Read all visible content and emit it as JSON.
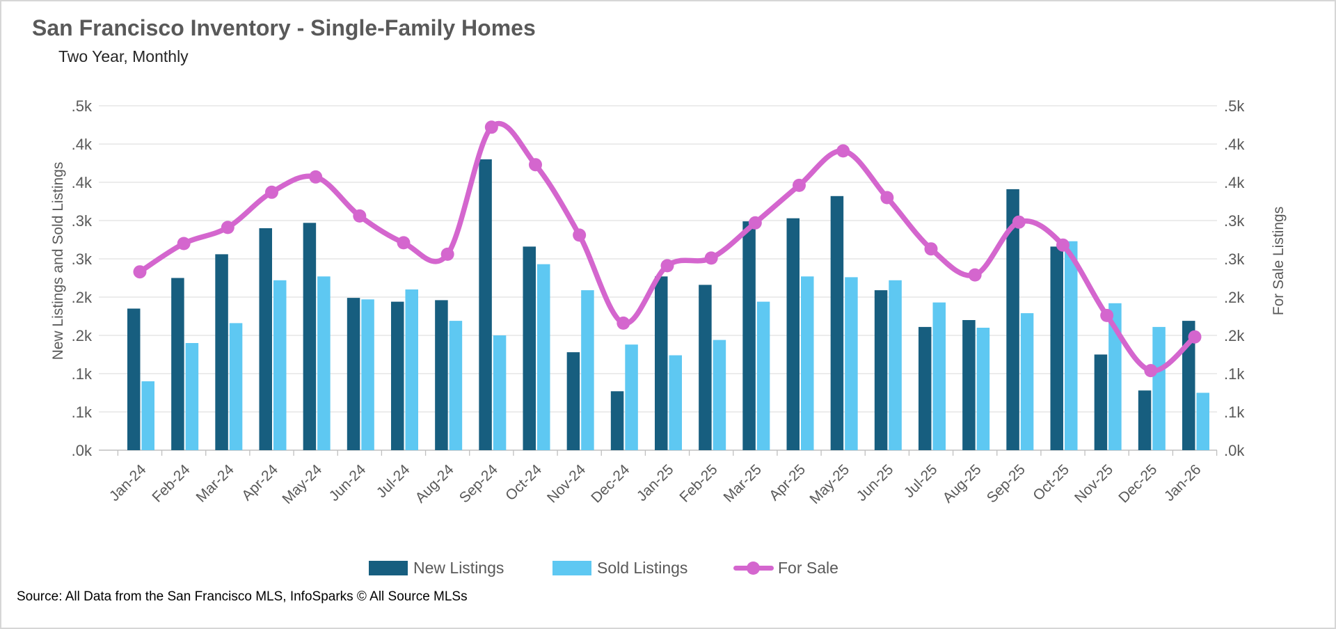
{
  "source_note": "Source: All Data from the San Francisco MLS, InfoSparks © All Source MLSs",
  "colors": {
    "new_listings": "#175E7F",
    "sold_listings": "#5EC8F2",
    "for_sale": "#D466CE",
    "gridline": "#E0E0E0",
    "axis_line": "#BFBFBF",
    "axis_text": "#595959",
    "title_text": "#595959",
    "subtitle_text": "#262626"
  },
  "chart_data": {
    "type": "combo",
    "title": "San Francisco Inventory - Single-Family Homes",
    "subtitle": "Two Year, Monthly",
    "ylabel_left": "New Listings and Sold Listings",
    "ylabel_right": "For Sale Listings",
    "ylim": [
      0,
      450
    ],
    "ytick_step": 50,
    "ytick_labels": [
      ".0k",
      ".1k",
      ".1k",
      ".2k",
      ".2k",
      ".3k",
      ".3k",
      ".4k",
      ".4k",
      ".5k"
    ],
    "grid": true,
    "legend_position": "bottom",
    "categories": [
      "Jan-24",
      "Feb-24",
      "Mar-24",
      "Apr-24",
      "May-24",
      "Jun-24",
      "Jul-24",
      "Aug-24",
      "Sep-24",
      "Oct-24",
      "Nov-24",
      "Dec-24",
      "Jan-25",
      "Feb-25",
      "Mar-25",
      "Apr-25",
      "May-25",
      "Jun-25",
      "Jul-25",
      "Aug-25",
      "Sep-25",
      "Oct-25",
      "Nov-25",
      "Dec-25",
      "Jan-26"
    ],
    "series": [
      {
        "name": "New Listings",
        "type": "bar",
        "color_key": "new_listings",
        "values": [
          185,
          225,
          256,
          290,
          297,
          199,
          194,
          196,
          380,
          266,
          128,
          77,
          227,
          216,
          299,
          303,
          332,
          209,
          161,
          170,
          341,
          266,
          125,
          78,
          169
        ]
      },
      {
        "name": "Sold Listings",
        "type": "bar",
        "color_key": "sold_listings",
        "values": [
          90,
          140,
          166,
          222,
          227,
          197,
          210,
          169,
          150,
          243,
          209,
          138,
          124,
          144,
          194,
          227,
          226,
          222,
          193,
          160,
          179,
          273,
          192,
          161,
          75
        ]
      },
      {
        "name": "For Sale",
        "type": "line",
        "axis": "right",
        "color_key": "for_sale",
        "values": [
          233,
          270,
          291,
          337,
          357,
          306,
          271,
          256,
          422,
          373,
          281,
          166,
          241,
          251,
          297,
          346,
          391,
          330,
          263,
          229,
          298,
          268,
          176,
          104,
          148
        ]
      }
    ]
  }
}
